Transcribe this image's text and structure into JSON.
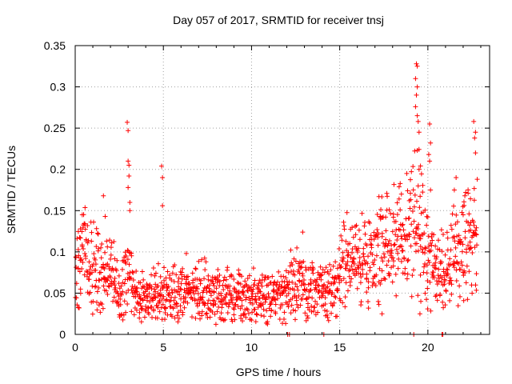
{
  "chart_data": {
    "type": "scatter",
    "title": "Day 057 of 2017, SRMTID for receiver tnsj",
    "xlabel": "GPS time / hours",
    "ylabel": "SRMTID / TECUs",
    "xlim": [
      0,
      23.5
    ],
    "ylim": [
      0,
      0.35
    ],
    "xticks": [
      0,
      5,
      10,
      15,
      20
    ],
    "xtick_labels": [
      "0",
      "5",
      "10",
      "15",
      "20"
    ],
    "yticks": [
      0,
      0.05,
      0.1,
      0.15,
      0.2,
      0.25,
      0.3,
      0.35
    ],
    "ytick_labels": [
      "0",
      "0.05",
      "0.1",
      "0.15",
      "0.2",
      "0.25",
      "0.3",
      "0.35"
    ],
    "grid": true,
    "marker": "+",
    "color": "#ff0000",
    "series": [
      {
        "name": "SRMTID",
        "trend": [
          [
            0.0,
            0.07
          ],
          [
            0.5,
            0.11
          ],
          [
            1.0,
            0.085
          ],
          [
            1.5,
            0.075
          ],
          [
            2.0,
            0.08
          ],
          [
            2.5,
            0.055
          ],
          [
            3.0,
            0.075
          ],
          [
            3.5,
            0.045
          ],
          [
            4.0,
            0.045
          ],
          [
            4.5,
            0.05
          ],
          [
            5.0,
            0.045
          ],
          [
            5.5,
            0.05
          ],
          [
            6.0,
            0.05
          ],
          [
            7.0,
            0.055
          ],
          [
            8.0,
            0.05
          ],
          [
            9.0,
            0.045
          ],
          [
            10.0,
            0.045
          ],
          [
            11.0,
            0.045
          ],
          [
            12.0,
            0.05
          ],
          [
            12.5,
            0.07
          ],
          [
            13.0,
            0.055
          ],
          [
            14.0,
            0.05
          ],
          [
            14.8,
            0.055
          ],
          [
            15.2,
            0.095
          ],
          [
            16.0,
            0.085
          ],
          [
            17.0,
            0.1
          ],
          [
            18.0,
            0.12
          ],
          [
            19.0,
            0.13
          ],
          [
            19.5,
            0.14
          ],
          [
            20.0,
            0.09
          ],
          [
            21.0,
            0.075
          ],
          [
            22.0,
            0.11
          ],
          [
            22.5,
            0.12
          ],
          [
            22.8,
            0.1
          ]
        ],
        "spikes": [
          [
            0.4,
            0.145
          ],
          [
            0.3,
            0.128
          ],
          [
            1.6,
            0.168
          ],
          [
            1.7,
            0.143
          ],
          [
            2.95,
            0.257
          ],
          [
            3.0,
            0.247
          ],
          [
            3.0,
            0.21
          ],
          [
            3.05,
            0.205
          ],
          [
            3.05,
            0.192
          ],
          [
            3.0,
            0.178
          ],
          [
            3.1,
            0.16
          ],
          [
            3.1,
            0.15
          ],
          [
            4.9,
            0.204
          ],
          [
            4.95,
            0.19
          ],
          [
            4.95,
            0.156
          ],
          [
            6.3,
            0.098
          ],
          [
            12.9,
            0.124
          ],
          [
            17.3,
            0.143
          ],
          [
            18.5,
            0.17
          ],
          [
            19.3,
            0.31
          ],
          [
            19.35,
            0.328
          ],
          [
            19.4,
            0.325
          ],
          [
            19.4,
            0.3
          ],
          [
            19.35,
            0.29
          ],
          [
            19.3,
            0.276
          ],
          [
            19.4,
            0.265
          ],
          [
            19.45,
            0.258
          ],
          [
            19.5,
            0.245
          ],
          [
            19.4,
            0.223
          ],
          [
            19.5,
            0.2
          ],
          [
            19.45,
            0.18
          ],
          [
            20.1,
            0.255
          ],
          [
            20.15,
            0.232
          ],
          [
            20.05,
            0.218
          ],
          [
            20.1,
            0.21
          ],
          [
            20.15,
            0.175
          ],
          [
            21.6,
            0.19
          ],
          [
            21.5,
            0.175
          ],
          [
            22.6,
            0.258
          ],
          [
            22.7,
            0.245
          ],
          [
            22.65,
            0.238
          ],
          [
            22.7,
            0.22
          ],
          [
            22.8,
            0.188
          ],
          [
            22.0,
            0.145
          ],
          [
            19.6,
            0.04
          ],
          [
            19.55,
            0.025
          ],
          [
            17.4,
            0.025
          ]
        ],
        "zeros": [
          [
            12.05,
            0
          ],
          [
            12.15,
            0
          ],
          [
            14.1,
            0
          ],
          [
            19.2,
            0
          ],
          [
            20.8,
            0
          ],
          [
            20.85,
            0
          ]
        ]
      }
    ]
  }
}
